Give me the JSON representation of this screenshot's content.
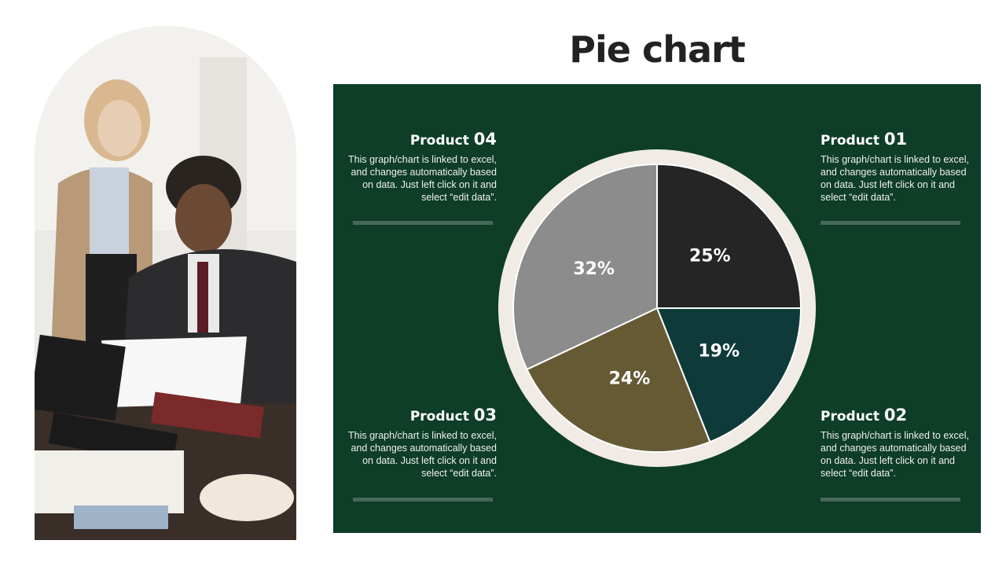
{
  "title": "Pie chart",
  "products": [
    {
      "label": "Product",
      "number": "04",
      "description": "This graph/chart is linked to excel, and changes automatically based on data. Just left click on it and select “edit data”."
    },
    {
      "label": "Product",
      "number": "01",
      "description": "This graph/chart is linked to excel, and changes automatically based on data. Just left click on it and select “edit data”."
    },
    {
      "label": "Product",
      "number": "03",
      "description": "This graph/chart is linked to excel, and changes automatically based on data. Just left click on it and select “edit data”."
    },
    {
      "label": "Product",
      "number": "02",
      "description": "This graph/chart is linked to excel, and changes automatically based on data. Just left click on it and select “edit data”."
    }
  ],
  "chart_data": {
    "type": "pie",
    "title": "",
    "categories": [
      "Product 01",
      "Product 02",
      "Product 03",
      "Product 04"
    ],
    "values": [
      25,
      19,
      24,
      32
    ],
    "labels": [
      "25%",
      "19%",
      "24%",
      "32%"
    ],
    "colors": [
      "#252525",
      "#0f3a3a",
      "#665a35",
      "#8c8c8c"
    ],
    "ring_color": "#f0ebe5",
    "start": "top, clockwise"
  },
  "colors": {
    "panel": "#0e3d28",
    "accent_bar": "#47685a",
    "title": "#222222"
  }
}
